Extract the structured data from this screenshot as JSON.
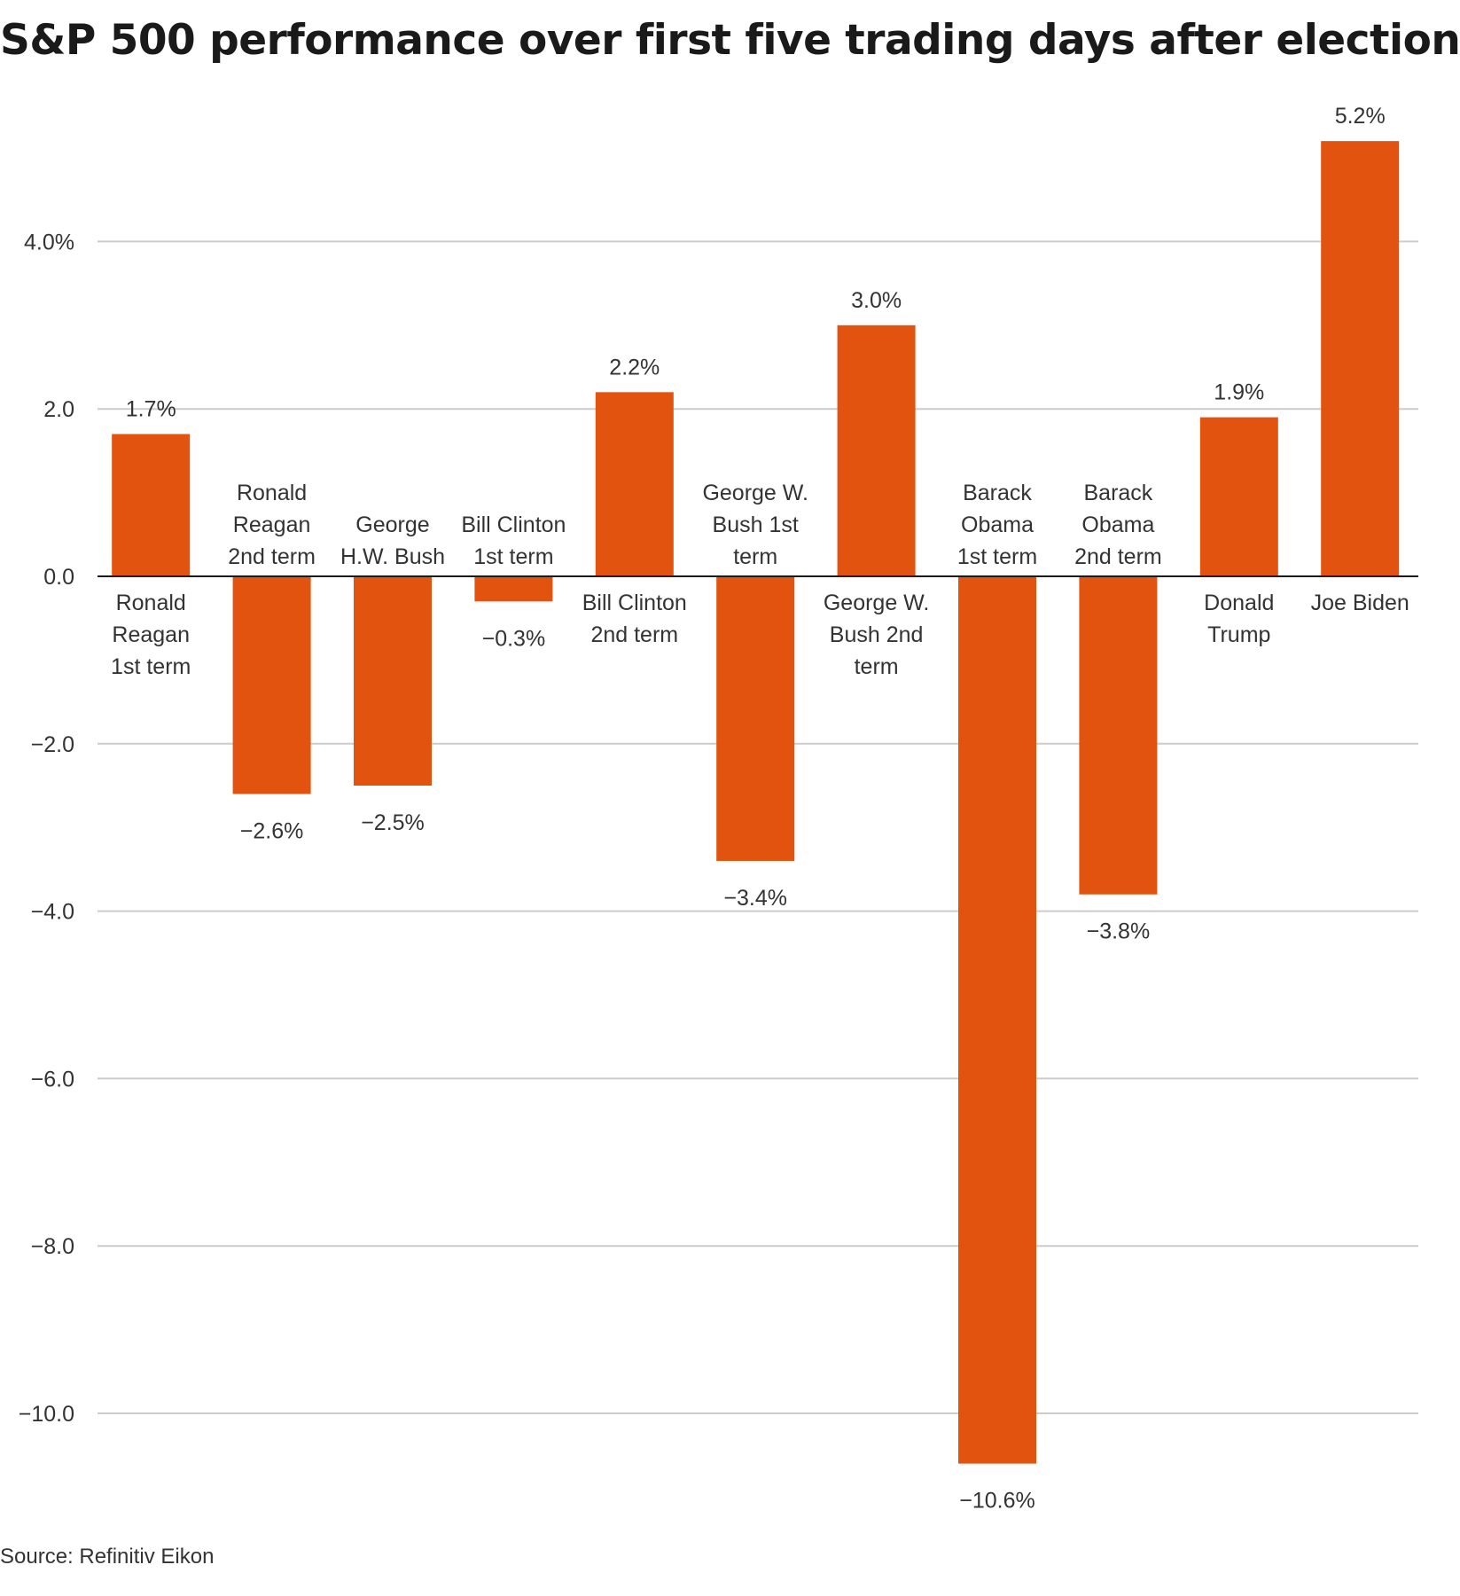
{
  "chart_data": {
    "type": "bar",
    "title": "S&P 500 performance over first five trading days after election",
    "source": "Source: Refinitiv Eikon",
    "categories": [
      "Ronald Reagan 1st term",
      "Ronald Reagan 2nd term",
      "George H.W. Bush",
      "Bill Clinton 1st term",
      "Bill Clinton 2nd term",
      "George W. Bush 1st term",
      "George W. Bush 2nd term",
      "Barack Obama 1st term",
      "Barack Obama 2nd term",
      "Donald Trump",
      "Joe Biden"
    ],
    "category_lines": [
      [
        "Ronald",
        "Reagan",
        "1st term"
      ],
      [
        "Ronald",
        "Reagan",
        "2nd term"
      ],
      [
        "George",
        "H.W. Bush"
      ],
      [
        "Bill Clinton",
        "1st term"
      ],
      [
        "Bill Clinton",
        "2nd term"
      ],
      [
        "George W.",
        "Bush 1st",
        "term"
      ],
      [
        "George W.",
        "Bush 2nd",
        "term"
      ],
      [
        "Barack",
        "Obama",
        "1st term"
      ],
      [
        "Barack",
        "Obama",
        "2nd term"
      ],
      [
        "Donald",
        "Trump"
      ],
      [
        "Joe Biden"
      ]
    ],
    "values": [
      1.7,
      -2.6,
      -2.5,
      -0.3,
      2.2,
      -3.4,
      3.0,
      -10.6,
      -3.8,
      1.9,
      5.2
    ],
    "value_labels": [
      "1.7%",
      "−2.6%",
      "−2.5%",
      "−0.3%",
      "2.2%",
      "−3.4%",
      "3.0%",
      "−10.6%",
      "−3.8%",
      "1.9%",
      "5.2%"
    ],
    "y_ticks": [
      4,
      2,
      0,
      -2,
      -4,
      -6,
      -8,
      -10
    ],
    "y_tick_labels": [
      "4.0%",
      "2.0",
      "0.0",
      "−2.0",
      "−4.0",
      "−6.0",
      "−8.0",
      "−10.0"
    ],
    "ylim": [
      -11,
      5.6
    ],
    "grid": true,
    "bar_color": "#e35310",
    "xlabel": "",
    "ylabel": ""
  }
}
